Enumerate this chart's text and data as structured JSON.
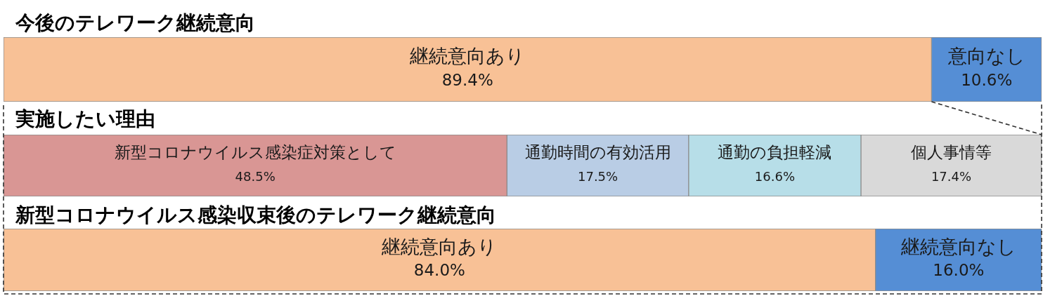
{
  "chart_data": [
    {
      "type": "bar",
      "title": "今後のテレワーク継続意向",
      "orientation": "horizontal",
      "stacked": true,
      "categories": [
        null
      ],
      "tick_labels": false,
      "series": [
        {
          "name": "継続意向あり",
          "color": "#f8c196",
          "values": [
            89.4
          ],
          "value_labels": [
            "89.4%"
          ]
        },
        {
          "name": "意向なし",
          "color": "#558ed5",
          "values": [
            10.6
          ],
          "value_labels": [
            "10.6%"
          ]
        }
      ]
    },
    {
      "type": "bar",
      "title": "実施したい理由",
      "orientation": "horizontal",
      "stacked": true,
      "categories": [
        null
      ],
      "tick_labels": false,
      "series": [
        {
          "name": "新型コロナウイルス感染症対策として",
          "color": "#d99694",
          "values": [
            48.5
          ],
          "value_labels": [
            "48.5%"
          ]
        },
        {
          "name": "通勤時間の有効活用",
          "color": "#b9cde5",
          "values": [
            17.5
          ],
          "value_labels": [
            "17.5%"
          ]
        },
        {
          "name": "通勤の負担軽減",
          "color": "#b7dee8",
          "values": [
            16.6
          ],
          "value_labels": [
            "16.6%"
          ]
        },
        {
          "name": "個人事情等",
          "color": "#d9d9d9",
          "values": [
            17.4
          ],
          "value_labels": [
            "17.4%"
          ]
        }
      ]
    },
    {
      "type": "bar",
      "title": "新型コロナウイルス感染収束後のテレワーク継続意向",
      "orientation": "horizontal",
      "stacked": true,
      "categories": [
        null
      ],
      "tick_labels": false,
      "series": [
        {
          "name": "継続意向あり",
          "color": "#f8c196",
          "values": [
            84.0
          ],
          "value_labels": [
            "84.0%"
          ]
        },
        {
          "name": "継続意向なし",
          "color": "#558ed5",
          "values": [
            16.0
          ],
          "value_labels": [
            "16.0%"
          ]
        }
      ]
    }
  ]
}
